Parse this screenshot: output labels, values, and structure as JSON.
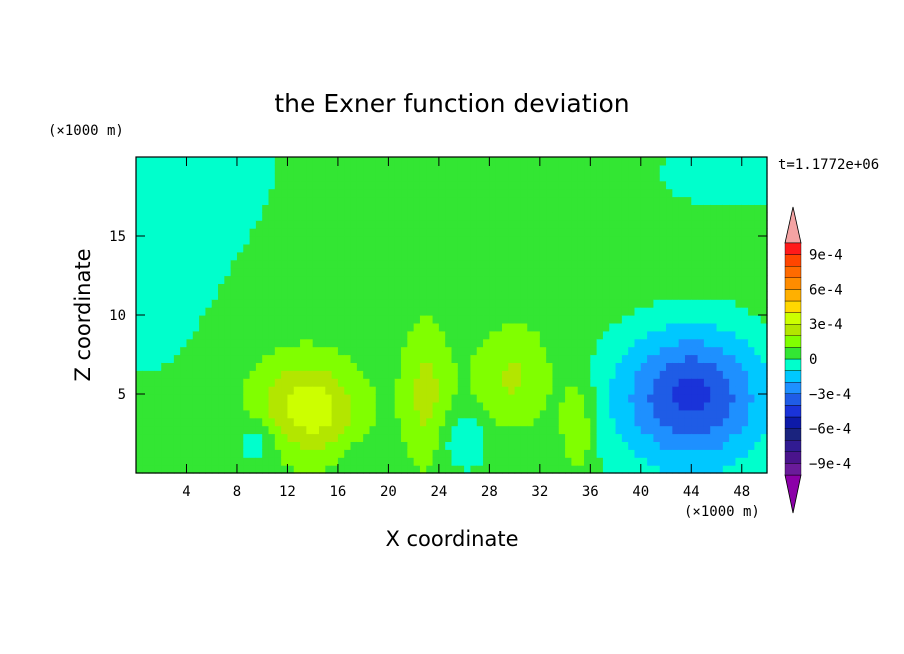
{
  "chart_data": {
    "type": "heatmap",
    "title": "the Exner function deviation",
    "xlabel": "X coordinate",
    "ylabel": "Z coordinate",
    "x_unit": "(×1000 m)",
    "y_unit": "(×1000 m)",
    "time_label": "t=1.1772e+06",
    "xlim": [
      0,
      50
    ],
    "ylim": [
      0,
      20
    ],
    "x_ticks": [
      4,
      8,
      12,
      16,
      20,
      24,
      28,
      32,
      36,
      40,
      44,
      48
    ],
    "y_ticks": [
      5,
      10,
      15
    ],
    "colorbar": {
      "levels": [
        -0.001,
        -0.0009,
        -0.0008,
        -0.0007,
        -0.0006,
        -0.0005,
        -0.0004,
        -0.0003,
        -0.0002,
        -0.0001,
        0,
        0.0001,
        0.0002,
        0.0003,
        0.0004,
        0.0005,
        0.0006,
        0.0007,
        0.0008,
        0.0009,
        0.001
      ],
      "colors": [
        "#6a1b9a",
        "#4a148c",
        "#311b92",
        "#1a237e",
        "#0d1aa8",
        "#1a33d9",
        "#1f5ce6",
        "#1e90ff",
        "#00c8ff",
        "#00ffcc",
        "#33e633",
        "#80ff00",
        "#b3e600",
        "#ccff00",
        "#ffd700",
        "#ffb000",
        "#ff8c00",
        "#ff6a00",
        "#ff4500",
        "#ff1a1a"
      ],
      "under_color": "#8b00a8",
      "over_color": "#f4a3a3",
      "tick_labels": [
        "9e-4",
        "6e-4",
        "3e-4",
        "0",
        "−3e-4",
        "−6e-4",
        "−9e-4"
      ]
    },
    "field_blobs": [
      {
        "x": 0,
        "z": 20,
        "sx": 14,
        "sz": 7,
        "amp": -0.0001
      },
      {
        "x": 0,
        "z": 12,
        "sx": 8,
        "sz": 10,
        "amp": -8e-05
      },
      {
        "x": 48,
        "z": 19,
        "sx": 12,
        "sz": 4,
        "amp": -8e-05
      },
      {
        "x": 44,
        "z": 5.2,
        "sx": 5.5,
        "sz": 4,
        "amp": -0.00038
      },
      {
        "x": 44,
        "z": 3,
        "sx": 9,
        "sz": 6,
        "amp": -0.00012
      },
      {
        "x": 13,
        "z": 4.5,
        "sx": 4,
        "sz": 3,
        "amp": 0.00022
      },
      {
        "x": 15,
        "z": 3.5,
        "sx": 3,
        "sz": 2.5,
        "amp": 0.00012
      },
      {
        "x": 23,
        "z": 5,
        "sx": 1.8,
        "sz": 4,
        "amp": 0.00018
      },
      {
        "x": 30,
        "z": 6,
        "sx": 3,
        "sz": 3,
        "amp": 0.00016
      },
      {
        "x": 35,
        "z": 3,
        "sx": 1.3,
        "sz": 3,
        "amp": 0.00018
      },
      {
        "x": 26,
        "z": 2,
        "sx": 1.8,
        "sz": 1.8,
        "amp": -0.00016
      },
      {
        "x": 9.5,
        "z": 2,
        "sx": 1.5,
        "sz": 1.5,
        "amp": -0.00015
      },
      {
        "x": 18,
        "z": 1,
        "sx": 2,
        "sz": 1.2,
        "amp": -8e-05
      }
    ]
  }
}
